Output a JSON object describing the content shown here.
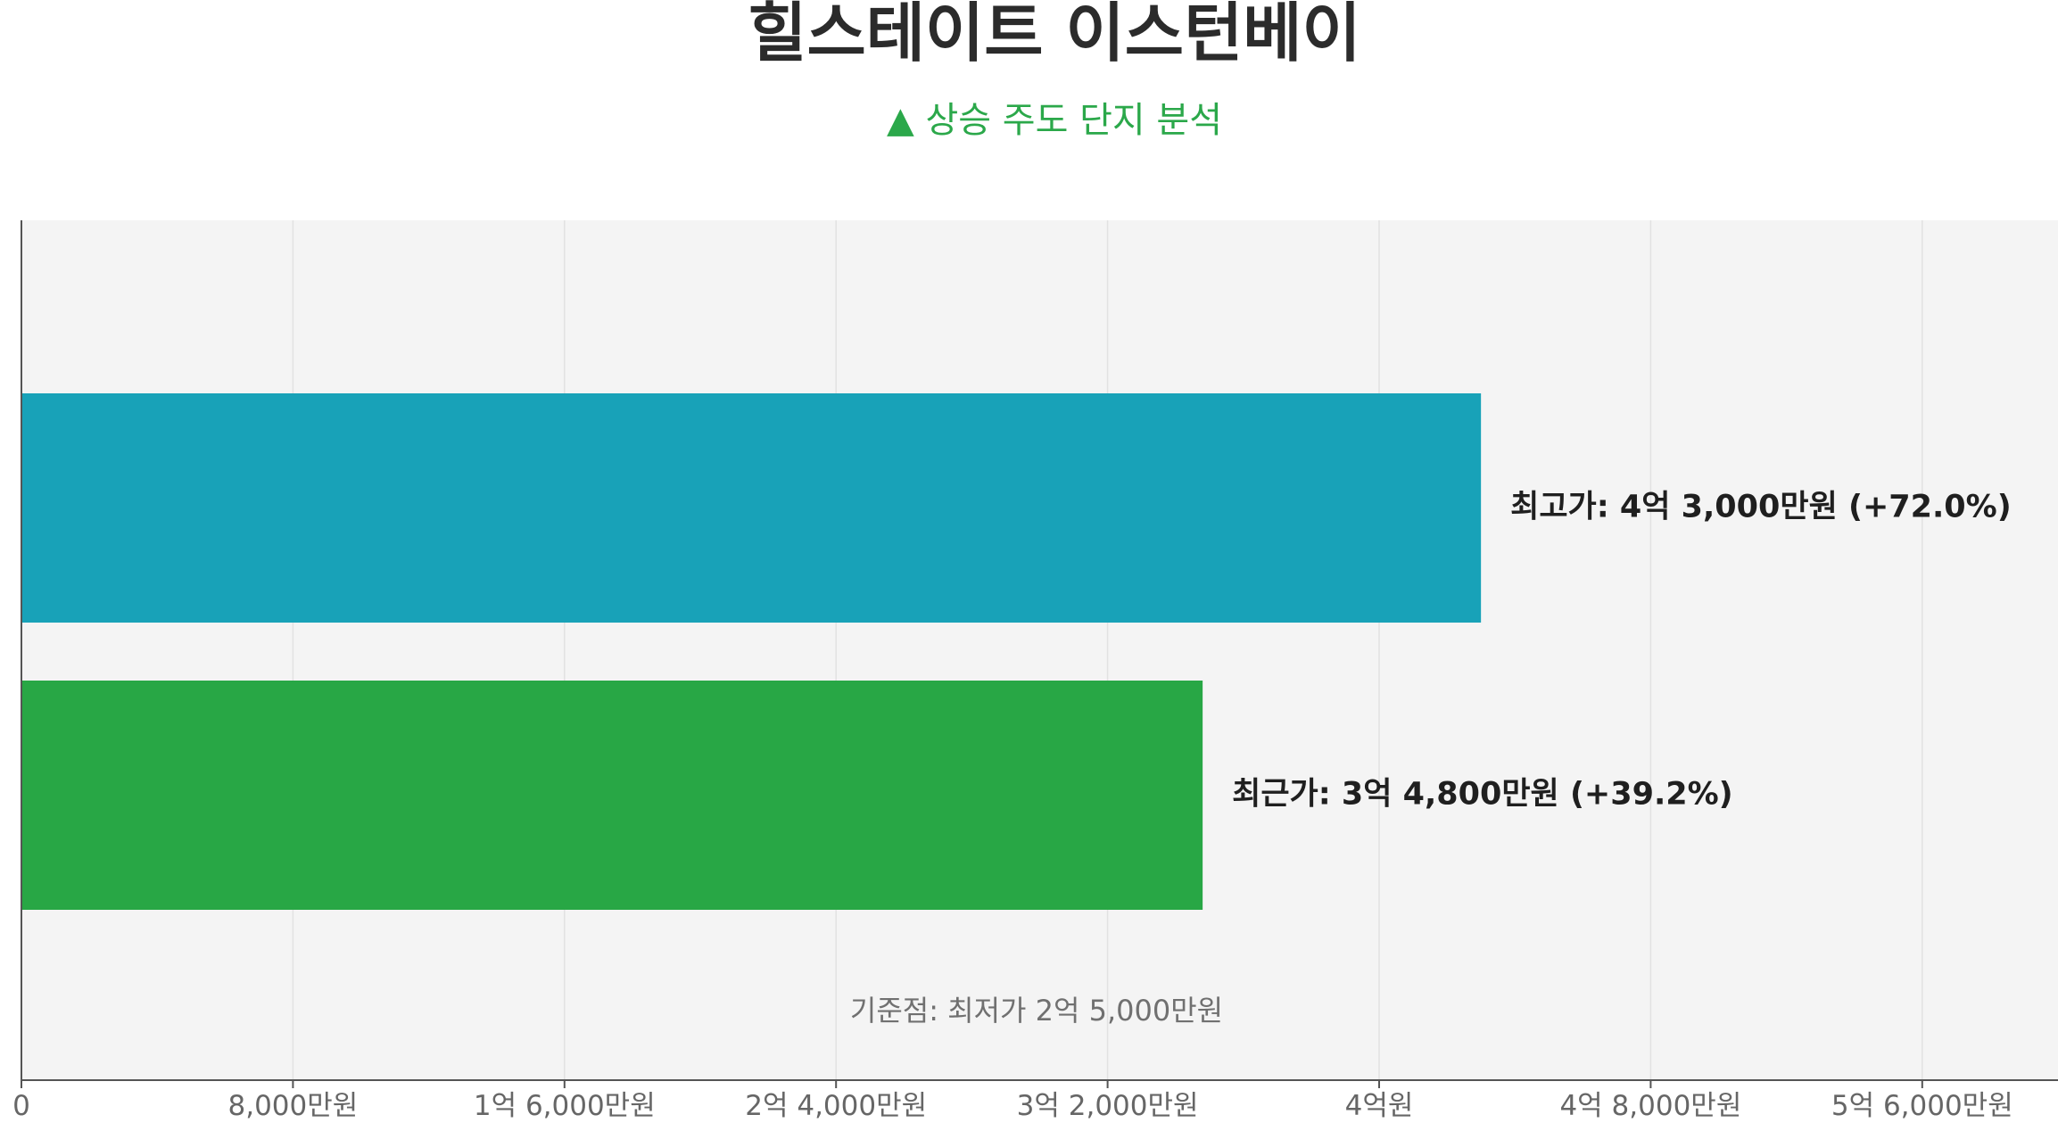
{
  "chart_data": {
    "type": "bar",
    "orientation": "horizontal",
    "title": "힐스테이트 이스턴베이",
    "subtitle": "▲ 상승 주도 단지 분석",
    "categories": [
      "최고가",
      "최근가"
    ],
    "values": [
      43000,
      34800
    ],
    "value_labels": [
      "최고가: 4억 3,000만원 (+72.0%)",
      "최근가: 3억 4,800만원 (+39.2%)"
    ],
    "change_percent": [
      72.0,
      39.2
    ],
    "xlim": [
      0,
      60000
    ],
    "xticks": [
      0,
      8000,
      16000,
      24000,
      32000,
      40000,
      48000,
      56000
    ],
    "xtick_labels": [
      "0",
      "8,000만원",
      "1억 6,000만원",
      "2억 4,000만원",
      "3억 2,000만원",
      "4억원",
      "4억 8,000만원",
      "5억 6,000만원"
    ],
    "xlabel": "",
    "ylabel": "",
    "grid": "vertical",
    "annotation": "기준점: 최저가 2억 5,000만원",
    "colors": {
      "bars": [
        "#18a2b8",
        "#28a745"
      ],
      "plot_background": "#f4f4f4",
      "grid": "#e2e2e2",
      "axis": "#555555",
      "subtitle": "#2ba84a",
      "title": "#2b2b2b"
    }
  }
}
